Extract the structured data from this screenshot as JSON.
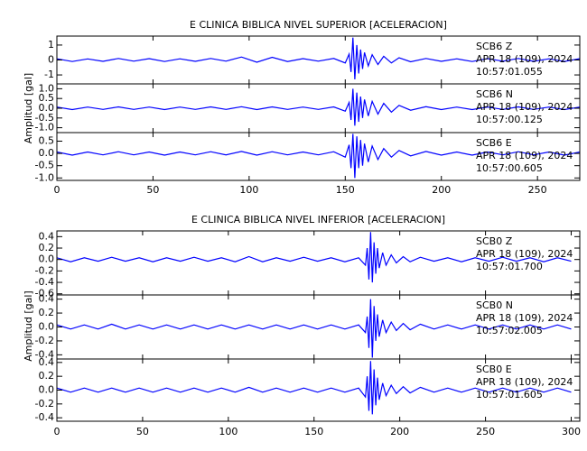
{
  "chart_data": [
    {
      "type": "line",
      "title": "E CLINICA BIBLICA NIVEL SUPERIOR [ACELERACION]",
      "ylabel": "Amplitud [gal]",
      "xlim": [
        0,
        272
      ],
      "xticks": [
        0,
        50,
        100,
        150,
        200,
        250
      ],
      "color": "#0000ff",
      "x": [
        0,
        8,
        16,
        24,
        32,
        40,
        48,
        56,
        64,
        72,
        80,
        88,
        96,
        104,
        112,
        120,
        128,
        136,
        144,
        150,
        152,
        153,
        154,
        155,
        156,
        157,
        158,
        159,
        160,
        162,
        164,
        167,
        170,
        174,
        178,
        184,
        192,
        200,
        208,
        216,
        224,
        232,
        240,
        248,
        256,
        264,
        272
      ],
      "panels": [
        {
          "station": "SCB6   Z",
          "date": "APR 18 (109), 2024",
          "time": "10:57:01.055",
          "ylim": [
            -1.6,
            1.6
          ],
          "yticks": [
            1,
            0,
            -1
          ],
          "values": [
            0.08,
            -0.1,
            0.07,
            -0.09,
            0.1,
            -0.08,
            0.09,
            -0.1,
            0.08,
            -0.09,
            0.1,
            -0.08,
            0.2,
            -0.15,
            0.18,
            -0.1,
            0.09,
            -0.08,
            0.1,
            -0.2,
            0.4,
            -0.8,
            1.5,
            -1.3,
            1.0,
            -0.9,
            0.7,
            -0.6,
            0.5,
            -0.4,
            0.35,
            -0.3,
            0.25,
            -0.2,
            0.15,
            -0.12,
            0.1,
            -0.09,
            0.08,
            -0.1,
            0.09,
            -0.08,
            0.1,
            -0.09,
            0.08,
            -0.1,
            0.09
          ]
        },
        {
          "station": "SCB6   N",
          "date": "APR 18 (109), 2024",
          "time": "10:57:00.125",
          "ylim": [
            -1.25,
            1.25
          ],
          "yticks": [
            {
              "value": 1,
              "label": "1.0"
            },
            0.5,
            {
              "value": 0,
              "label": "0.0"
            },
            -0.5,
            {
              "value": -1,
              "label": "-1.0"
            }
          ],
          "values": [
            0.06,
            -0.07,
            0.06,
            -0.06,
            0.07,
            -0.06,
            0.06,
            -0.07,
            0.06,
            -0.06,
            0.07,
            -0.06,
            0.08,
            -0.07,
            0.07,
            -0.06,
            0.06,
            -0.06,
            0.07,
            -0.15,
            0.3,
            -0.6,
            1.0,
            -0.9,
            0.8,
            -0.7,
            0.6,
            -0.5,
            0.45,
            -0.4,
            0.35,
            -0.3,
            0.25,
            -0.2,
            0.15,
            -0.1,
            0.08,
            -0.07,
            0.06,
            -0.07,
            0.06,
            -0.06,
            0.07,
            -0.06,
            0.06,
            -0.07,
            0.06
          ]
        },
        {
          "station": "SCB6   E",
          "date": "APR 18 (109), 2024",
          "time": "10:57:00.605",
          "ylim": [
            -1.1,
            0.85
          ],
          "yticks": [
            0.5,
            {
              "value": 0,
              "label": "0.0"
            },
            -0.5,
            {
              "value": -1,
              "label": "-1.0"
            }
          ],
          "values": [
            0.06,
            -0.07,
            0.06,
            -0.06,
            0.07,
            -0.06,
            0.06,
            -0.07,
            0.06,
            -0.06,
            0.07,
            -0.06,
            0.08,
            -0.07,
            0.07,
            -0.06,
            0.06,
            -0.06,
            0.07,
            -0.15,
            0.35,
            -0.6,
            0.8,
            -1.0,
            0.7,
            -0.6,
            0.55,
            -0.5,
            0.4,
            -0.35,
            0.3,
            -0.25,
            0.2,
            -0.15,
            0.12,
            -0.1,
            0.08,
            -0.07,
            0.06,
            -0.07,
            0.06,
            -0.06,
            0.07,
            -0.06,
            0.06,
            -0.07,
            0.06
          ]
        }
      ]
    },
    {
      "type": "line",
      "title": "E CLINICA BIBLICA NIVEL INFERIOR [ACELERACION]",
      "ylabel": "Amplitud [gal]",
      "xlim": [
        0,
        305
      ],
      "xticks": [
        0,
        50,
        100,
        150,
        200,
        250,
        300
      ],
      "color": "#0000ff",
      "x": [
        0,
        8,
        16,
        24,
        32,
        40,
        48,
        56,
        64,
        72,
        80,
        88,
        96,
        104,
        112,
        120,
        128,
        136,
        144,
        152,
        160,
        168,
        176,
        180,
        181,
        182,
        183,
        184,
        185,
        186,
        187,
        188,
        190,
        192,
        195,
        198,
        202,
        206,
        212,
        220,
        228,
        236,
        244,
        252,
        260,
        268,
        276,
        284,
        292,
        300
      ],
      "panels": [
        {
          "station": "SCB0   Z",
          "date": "APR 18 (109), 2024",
          "time": "10:57:01.700",
          "ylim": [
            -0.62,
            0.5
          ],
          "yticks": [
            0.4,
            0.2,
            {
              "value": 0,
              "label": "0.0"
            },
            -0.2,
            -0.4,
            -0.6
          ],
          "values": [
            0.03,
            -0.04,
            0.03,
            -0.03,
            0.04,
            -0.03,
            0.03,
            -0.04,
            0.03,
            -0.03,
            0.04,
            -0.03,
            0.03,
            -0.04,
            0.05,
            -0.04,
            0.03,
            -0.03,
            0.04,
            -0.03,
            0.03,
            -0.04,
            0.03,
            -0.1,
            0.2,
            -0.35,
            0.48,
            -0.4,
            0.3,
            -0.25,
            0.2,
            -0.15,
            0.12,
            -0.1,
            0.08,
            -0.06,
            0.05,
            -0.04,
            0.04,
            -0.03,
            0.03,
            -0.04,
            0.03,
            -0.03,
            0.04,
            -0.03,
            0.03,
            -0.04,
            0.03,
            -0.03
          ]
        },
        {
          "station": "SCB0   N",
          "date": "APR 18 (109), 2024",
          "time": "10:57:02.005",
          "ylim": [
            -0.46,
            0.46
          ],
          "yticks": [
            0.4,
            0.2,
            {
              "value": 0,
              "label": "0.0"
            },
            -0.2,
            -0.4
          ],
          "values": [
            0.03,
            -0.03,
            0.03,
            -0.03,
            0.04,
            -0.03,
            0.03,
            -0.03,
            0.03,
            -0.03,
            0.03,
            -0.03,
            0.03,
            -0.03,
            0.03,
            -0.03,
            0.03,
            -0.03,
            0.03,
            -0.03,
            0.03,
            -0.03,
            0.03,
            -0.08,
            0.15,
            -0.3,
            0.4,
            -0.44,
            0.3,
            -0.2,
            0.18,
            -0.14,
            0.1,
            -0.08,
            0.07,
            -0.05,
            0.05,
            -0.04,
            0.04,
            -0.03,
            0.03,
            -0.03,
            0.03,
            -0.03,
            0.03,
            -0.03,
            0.03,
            -0.03,
            0.03,
            -0.03
          ]
        },
        {
          "station": "SCB0   E",
          "date": "APR 18 (109), 2024",
          "time": "10:57:01.605",
          "ylim": [
            -0.45,
            0.45
          ],
          "yticks": [
            0.4,
            0.2,
            {
              "value": 0,
              "label": "0.0"
            },
            -0.2,
            -0.4
          ],
          "values": [
            0.03,
            -0.03,
            0.03,
            -0.03,
            0.03,
            -0.03,
            0.03,
            -0.03,
            0.03,
            -0.03,
            0.03,
            -0.03,
            0.03,
            -0.03,
            0.04,
            -0.03,
            0.03,
            -0.03,
            0.03,
            -0.03,
            0.03,
            -0.03,
            0.03,
            -0.1,
            0.2,
            -0.3,
            0.42,
            -0.35,
            0.3,
            -0.22,
            0.18,
            -0.14,
            0.1,
            -0.08,
            0.07,
            -0.05,
            0.05,
            -0.04,
            0.04,
            -0.03,
            0.03,
            -0.03,
            0.03,
            -0.03,
            0.03,
            -0.03,
            0.03,
            -0.03,
            0.03,
            -0.03
          ]
        }
      ]
    }
  ]
}
